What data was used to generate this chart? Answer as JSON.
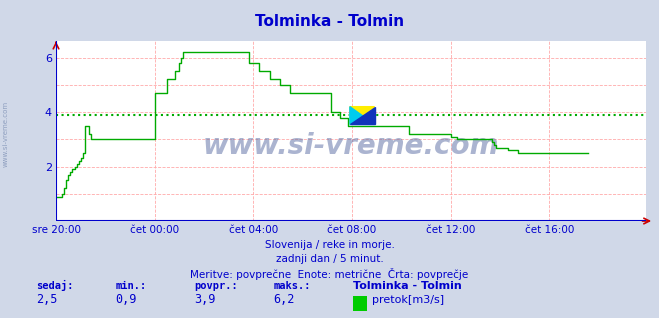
{
  "title": "Tolminka - Tolmin",
  "title_color": "#0000cc",
  "bg_color": "#d0d8e8",
  "plot_bg_color": "#ffffff",
  "line_color": "#00aa00",
  "avg_line_color": "#00aa00",
  "avg_line_value": 3.9,
  "grid_color": "#ffaaaa",
  "axis_color": "#0000cc",
  "xlim": [
    0,
    287
  ],
  "ylim": [
    0.0,
    6.6
  ],
  "yticks": [
    2,
    4,
    6
  ],
  "xtick_labels": [
    "sre 20:00",
    "čet 00:00",
    "čet 04:00",
    "čet 08:00",
    "čet 12:00",
    "čet 16:00"
  ],
  "xtick_positions": [
    0,
    48,
    96,
    144,
    192,
    240
  ],
  "watermark_center": "www.si-vreme.com",
  "watermark_left": "www.si-vreme.com",
  "sub_text1": "Slovenija / reke in morje.",
  "sub_text2": "zadnji dan / 5 minut.",
  "sub_text3": "Meritve: povprečne  Enote: metrične  Črta: povprečje",
  "footer_labels": [
    "sedaj:",
    "min.:",
    "povpr.:",
    "maks.:"
  ],
  "footer_vals": [
    "2,5",
    "0,9",
    "3,9",
    "6,2"
  ],
  "footer_station": "Tolminka - Tolmin",
  "footer_legend": "pretok[m3/s]",
  "legend_color": "#00cc00",
  "flow_data": [
    0.9,
    0.9,
    0.9,
    1.0,
    1.2,
    1.5,
    1.7,
    1.8,
    1.9,
    2.0,
    2.1,
    2.2,
    2.3,
    2.5,
    3.5,
    3.5,
    3.2,
    3.0,
    3.0,
    3.0,
    3.0,
    3.0,
    3.0,
    3.0,
    3.0,
    3.0,
    3.0,
    3.0,
    3.0,
    3.0,
    3.0,
    3.0,
    3.0,
    3.0,
    3.0,
    3.0,
    3.0,
    3.0,
    3.0,
    3.0,
    3.0,
    3.0,
    3.0,
    3.0,
    3.0,
    3.0,
    3.0,
    3.0,
    4.7,
    4.7,
    4.7,
    4.7,
    4.7,
    4.7,
    5.2,
    5.2,
    5.2,
    5.2,
    5.5,
    5.5,
    5.8,
    6.0,
    6.2,
    6.2,
    6.2,
    6.2,
    6.2,
    6.2,
    6.2,
    6.2,
    6.2,
    6.2,
    6.2,
    6.2,
    6.2,
    6.2,
    6.2,
    6.2,
    6.2,
    6.2,
    6.2,
    6.2,
    6.2,
    6.2,
    6.2,
    6.2,
    6.2,
    6.2,
    6.2,
    6.2,
    6.2,
    6.2,
    6.2,
    6.2,
    5.8,
    5.8,
    5.8,
    5.8,
    5.8,
    5.5,
    5.5,
    5.5,
    5.5,
    5.5,
    5.2,
    5.2,
    5.2,
    5.2,
    5.2,
    5.0,
    5.0,
    5.0,
    5.0,
    5.0,
    4.7,
    4.7,
    4.7,
    4.7,
    4.7,
    4.7,
    4.7,
    4.7,
    4.7,
    4.7,
    4.7,
    4.7,
    4.7,
    4.7,
    4.7,
    4.7,
    4.7,
    4.7,
    4.7,
    4.7,
    4.0,
    4.0,
    4.0,
    4.0,
    3.8,
    3.8,
    3.8,
    3.8,
    3.5,
    3.5,
    3.5,
    3.5,
    3.5,
    3.5,
    3.5,
    3.5,
    3.5,
    3.5,
    3.5,
    3.5,
    3.5,
    3.5,
    3.5,
    3.5,
    3.5,
    3.5,
    3.5,
    3.5,
    3.5,
    3.5,
    3.5,
    3.5,
    3.5,
    3.5,
    3.5,
    3.5,
    3.5,
    3.5,
    3.2,
    3.2,
    3.2,
    3.2,
    3.2,
    3.2,
    3.2,
    3.2,
    3.2,
    3.2,
    3.2,
    3.2,
    3.2,
    3.2,
    3.2,
    3.2,
    3.2,
    3.2,
    3.2,
    3.2,
    3.1,
    3.1,
    3.1,
    3.0,
    3.0,
    3.0,
    3.0,
    3.0,
    3.0,
    3.0,
    3.0,
    3.0,
    3.0,
    3.0,
    3.0,
    3.0,
    3.0,
    3.0,
    3.0,
    3.0,
    2.9,
    2.8,
    2.7,
    2.7,
    2.7,
    2.7,
    2.7,
    2.7,
    2.6,
    2.6,
    2.6,
    2.6,
    2.6,
    2.5,
    2.5,
    2.5,
    2.5,
    2.5,
    2.5,
    2.5,
    2.5,
    2.5,
    2.5,
    2.5,
    2.5,
    2.5,
    2.5,
    2.5,
    2.5,
    2.5,
    2.5,
    2.5,
    2.5,
    2.5,
    2.5,
    2.5,
    2.5,
    2.5,
    2.5,
    2.5,
    2.5,
    2.5,
    2.5,
    2.5,
    2.5,
    2.5,
    2.5,
    2.5
  ]
}
